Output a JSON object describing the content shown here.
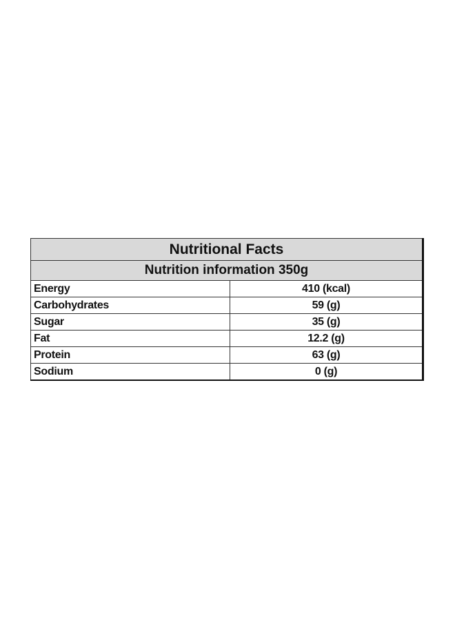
{
  "header": {
    "title": "Nutritional Facts",
    "subtitle": "Nutrition information 350g"
  },
  "table": {
    "rows": [
      [
        "Energy",
        "410 (kcal)"
      ],
      [
        "Carbohydrates",
        "59 (g)"
      ],
      [
        "Sugar",
        "35 (g)"
      ],
      [
        "Fat",
        "12.2 (g)"
      ],
      [
        "Protein",
        "63 (g)"
      ],
      [
        "Sodium",
        "0 (g)"
      ]
    ]
  }
}
